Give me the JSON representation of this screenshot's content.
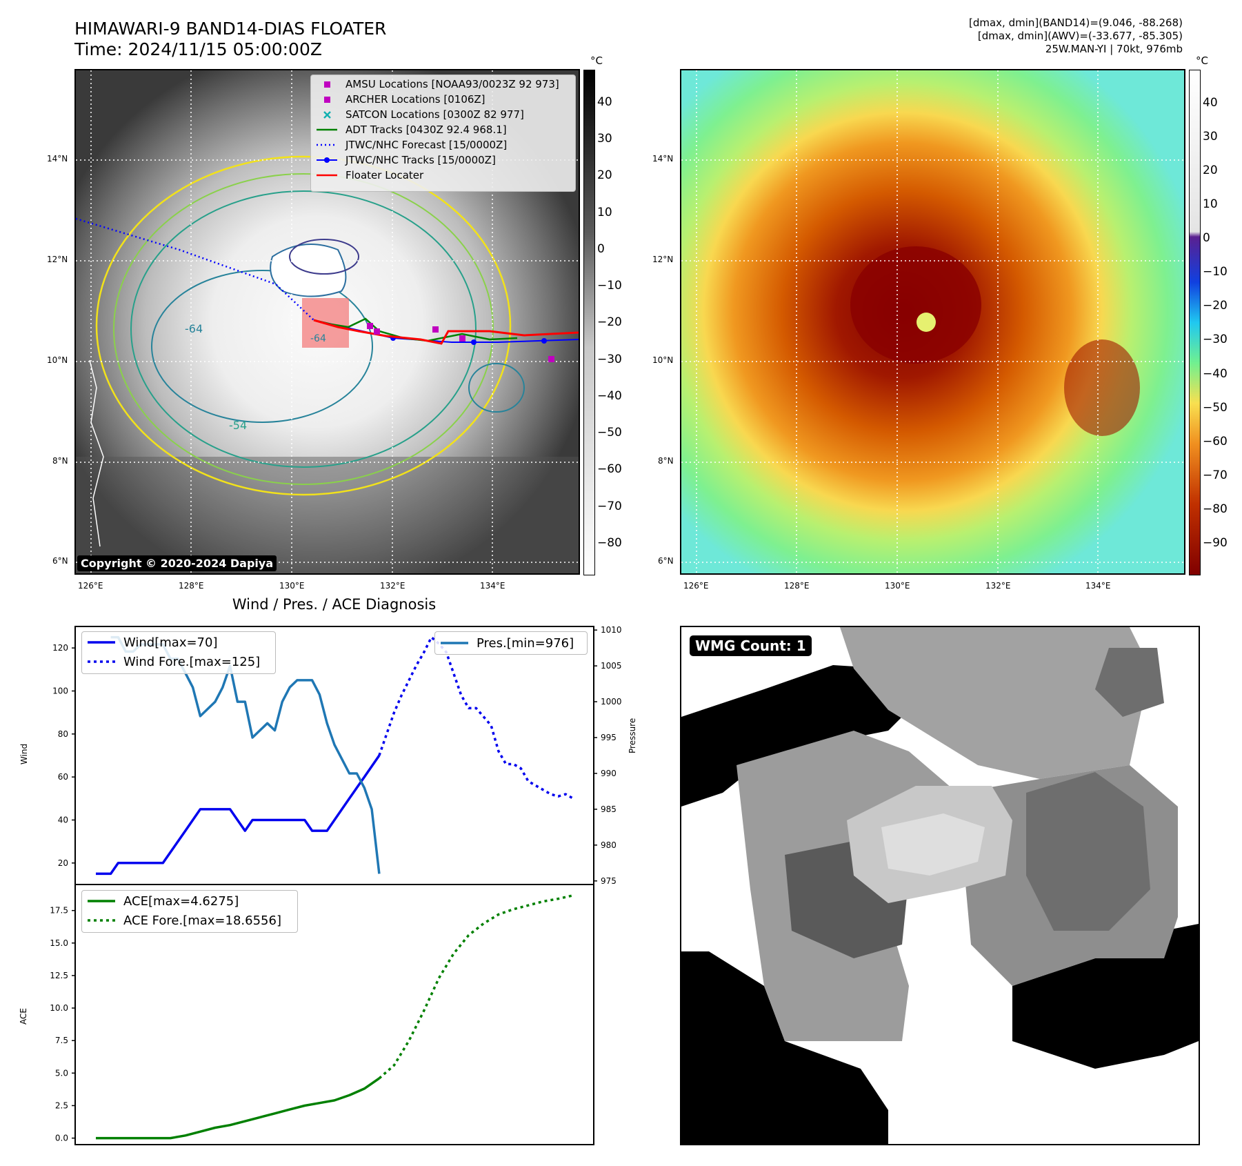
{
  "header": {
    "title_line1": "HIMAWARI-9 BAND14-DIAS FLOATER",
    "title_line2": "Time: 2024/11/15 05:00:00Z",
    "info_line1": "[dmax, dmin](BAND14)=(9.046, -88.268)",
    "info_line2": "[dmax, dmin](AWV)=(-33.677, -85.305)",
    "info_line3": "25W.MAN-YI | 70kt, 976mb"
  },
  "map_axes": {
    "lon_ticks": [
      "126°E",
      "128°E",
      "130°E",
      "132°E",
      "134°E"
    ],
    "lat_ticks": [
      "14°N",
      "12°N",
      "10°N",
      "8°N",
      "6°N"
    ],
    "contour_labels": [
      "-64",
      "-54",
      "-64"
    ]
  },
  "colorbars": {
    "unit": "°C",
    "left_ticks": [
      "40",
      "30",
      "20",
      "10",
      "0",
      "−10",
      "−20",
      "−30",
      "−40",
      "−50",
      "−60",
      "−70",
      "−80"
    ],
    "right_ticks": [
      "40",
      "30",
      "20",
      "10",
      "0",
      "−10",
      "−20",
      "−30",
      "−40",
      "−50",
      "−60",
      "−70",
      "−80",
      "−90"
    ]
  },
  "map_legend": [
    {
      "label": "AMSU Locations [NOAA93/0023Z 92 973]",
      "icon": "magenta-square",
      "color": "#c000c0"
    },
    {
      "label": "ARCHER Locations [0106Z]",
      "icon": "magenta-square",
      "color": "#c000c0"
    },
    {
      "label": "SATCON Locations [0300Z 82 977]",
      "icon": "cyan-x",
      "color": "#10b0b0"
    },
    {
      "label": "ADT Tracks [0430Z 92.4 968.1]",
      "icon": "green-line",
      "color": "#008000"
    },
    {
      "label": "JTWC/NHC Forecast [15/0000Z]",
      "icon": "blue-dotted-line",
      "color": "#0000ff"
    },
    {
      "label": "JTWC/NHC Tracks [15/0000Z]",
      "icon": "blue-dot-line",
      "color": "#0000ff"
    },
    {
      "label": "Floater Locater",
      "icon": "red-line",
      "color": "#ff0000"
    }
  ],
  "copyright": "Copyright © 2020-2024 Dapiya",
  "wmg_label": "WMG Count: 1",
  "diag": {
    "title": "Wind / Pres. / ACE Diagnosis",
    "wind_ylabel": "Wind",
    "pres_ylabel": "Pressure",
    "ace_ylabel": "ACE",
    "wind_ticks": [
      "120",
      "100",
      "80",
      "60",
      "40",
      "20"
    ],
    "pres_ticks": [
      "1010",
      "1005",
      "1000",
      "995",
      "990",
      "985",
      "980",
      "975"
    ],
    "ace_ticks": [
      "17.5",
      "15.0",
      "12.5",
      "10.0",
      "7.5",
      "5.0",
      "2.5",
      "0.0"
    ],
    "legend_wind": "Wind[max=70]",
    "legend_wind_fore": "Wind Fore.[max=125]",
    "legend_pres": "Pres.[min=976]",
    "legend_ace": "ACE[max=4.6275]",
    "legend_ace_fore": "ACE Fore.[max=18.6556]"
  },
  "chart_data": [
    {
      "type": "line",
      "title": "Wind / Pres. / ACE Diagnosis",
      "ylabel": "Wind",
      "y2label": "Pressure",
      "ylim": [
        10,
        130
      ],
      "y2lim": [
        974.5,
        1010.5
      ],
      "series": [
        {
          "name": "Wind[max=70]",
          "axis": "left",
          "color": "#0000ee",
          "style": "solid",
          "x": [
            0,
            1,
            2,
            3,
            4,
            5,
            6,
            7,
            8,
            9,
            10,
            11,
            12,
            13,
            14,
            15,
            16,
            17,
            18,
            19,
            20,
            21,
            22,
            23,
            24,
            25,
            26,
            27,
            28,
            29,
            30,
            31,
            32,
            33,
            34,
            35,
            36,
            37,
            38
          ],
          "y": [
            15,
            15,
            15,
            20,
            20,
            20,
            20,
            20,
            20,
            20,
            25,
            30,
            35,
            40,
            45,
            45,
            45,
            45,
            45,
            40,
            35,
            40,
            40,
            40,
            40,
            40,
            40,
            40,
            40,
            35,
            35,
            35,
            40,
            45,
            50,
            55,
            60,
            65,
            70
          ]
        },
        {
          "name": "Wind Fore.[max=125]",
          "axis": "left",
          "color": "#0000ee",
          "style": "dotted",
          "x": [
            38,
            39,
            40,
            41,
            42,
            43,
            44,
            45,
            46,
            47,
            48,
            49,
            50,
            51,
            52,
            53,
            54,
            55,
            56,
            57,
            58,
            59,
            60,
            61,
            62,
            63,
            64
          ],
          "y": [
            70,
            80,
            90,
            98,
            105,
            112,
            118,
            125,
            122,
            118,
            108,
            98,
            92,
            92,
            88,
            84,
            72,
            66,
            66,
            64,
            58,
            56,
            54,
            52,
            51,
            52,
            50
          ]
        },
        {
          "name": "Pres.[min=976]",
          "axis": "right",
          "color": "#1f77b4",
          "style": "solid",
          "x": [
            2,
            3,
            4,
            5,
            6,
            7,
            8,
            9,
            10,
            11,
            12,
            13,
            14,
            15,
            16,
            17,
            18,
            19,
            20,
            21,
            22,
            23,
            24,
            25,
            26,
            27,
            28,
            29,
            30,
            31,
            32,
            33,
            34,
            35,
            36,
            37,
            38
          ],
          "y": [
            1009,
            1009,
            1007,
            1007,
            1008,
            1008,
            1008,
            1008,
            1006,
            1006,
            1004,
            1002,
            998,
            999,
            1000,
            1002,
            1005,
            1000,
            1000,
            995,
            996,
            997,
            996,
            1000,
            1002,
            1003,
            1003,
            1003,
            1001,
            997,
            994,
            992,
            990,
            990,
            988,
            985,
            976
          ]
        }
      ]
    },
    {
      "type": "line",
      "ylabel": "ACE",
      "ylim": [
        -0.5,
        19.5
      ],
      "series": [
        {
          "name": "ACE[max=4.6275]",
          "color": "#008000",
          "style": "solid",
          "x": [
            0,
            2,
            4,
            6,
            8,
            10,
            12,
            14,
            16,
            18,
            20,
            22,
            24,
            26,
            28,
            30,
            32,
            34,
            36,
            38
          ],
          "y": [
            0,
            0,
            0,
            0,
            0,
            0,
            0.2,
            0.5,
            0.8,
            1.0,
            1.3,
            1.6,
            1.9,
            2.2,
            2.5,
            2.7,
            2.9,
            3.3,
            3.8,
            4.6
          ]
        },
        {
          "name": "ACE Fore.[max=18.6556]",
          "color": "#008000",
          "style": "dotted",
          "x": [
            38,
            40,
            42,
            44,
            46,
            48,
            50,
            52,
            54,
            56,
            58,
            60,
            62,
            64
          ],
          "y": [
            4.6,
            5.6,
            7.5,
            9.8,
            12.3,
            14.2,
            15.6,
            16.5,
            17.2,
            17.6,
            17.9,
            18.2,
            18.4,
            18.66
          ]
        }
      ]
    }
  ]
}
